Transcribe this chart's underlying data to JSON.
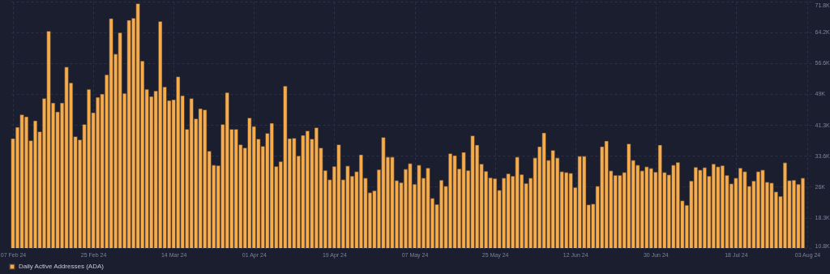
{
  "chart_data": {
    "type": "bar",
    "x": [
      "2024-02-07",
      "2024-02-08",
      "2024-02-09",
      "2024-02-10",
      "2024-02-11",
      "2024-02-12",
      "2024-02-13",
      "2024-02-14",
      "2024-02-15",
      "2024-02-16",
      "2024-02-17",
      "2024-02-18",
      "2024-02-19",
      "2024-02-20",
      "2024-02-21",
      "2024-02-22",
      "2024-02-23",
      "2024-02-24",
      "2024-02-25",
      "2024-02-26",
      "2024-02-27",
      "2024-02-28",
      "2024-02-29",
      "2024-03-01",
      "2024-03-02",
      "2024-03-03",
      "2024-03-04",
      "2024-03-05",
      "2024-03-06",
      "2024-03-07",
      "2024-03-08",
      "2024-03-09",
      "2024-03-10",
      "2024-03-11",
      "2024-03-12",
      "2024-03-13",
      "2024-03-14",
      "2024-03-15",
      "2024-03-16",
      "2024-03-17",
      "2024-03-18",
      "2024-03-19",
      "2024-03-20",
      "2024-03-21",
      "2024-03-22",
      "2024-03-23",
      "2024-03-24",
      "2024-03-25",
      "2024-03-26",
      "2024-03-27",
      "2024-03-28",
      "2024-03-29",
      "2024-03-30",
      "2024-03-31",
      "2024-04-01",
      "2024-04-02",
      "2024-04-03",
      "2024-04-04",
      "2024-04-05",
      "2024-04-06",
      "2024-04-07",
      "2024-04-08",
      "2024-04-09",
      "2024-04-10",
      "2024-04-11",
      "2024-04-12",
      "2024-04-13",
      "2024-04-14",
      "2024-04-15",
      "2024-04-16",
      "2024-04-17",
      "2024-04-18",
      "2024-04-19",
      "2024-04-20",
      "2024-04-21",
      "2024-04-22",
      "2024-04-23",
      "2024-04-24",
      "2024-04-25",
      "2024-04-26",
      "2024-04-27",
      "2024-04-28",
      "2024-04-29",
      "2024-04-30",
      "2024-05-01",
      "2024-05-02",
      "2024-05-03",
      "2024-05-04",
      "2024-05-05",
      "2024-05-06",
      "2024-05-07",
      "2024-05-08",
      "2024-05-09",
      "2024-05-10",
      "2024-05-11",
      "2024-05-12",
      "2024-05-13",
      "2024-05-14",
      "2024-05-15",
      "2024-05-16",
      "2024-05-17",
      "2024-05-18",
      "2024-05-19",
      "2024-05-20",
      "2024-05-21",
      "2024-05-22",
      "2024-05-23",
      "2024-05-24",
      "2024-05-25",
      "2024-05-26",
      "2024-05-27",
      "2024-05-28",
      "2024-05-29",
      "2024-05-30",
      "2024-05-31",
      "2024-06-01",
      "2024-06-02",
      "2024-06-03",
      "2024-06-04",
      "2024-06-05",
      "2024-06-06",
      "2024-06-07",
      "2024-06-08",
      "2024-06-09",
      "2024-06-10",
      "2024-06-11",
      "2024-06-12",
      "2024-06-13",
      "2024-06-14",
      "2024-06-15",
      "2024-06-16",
      "2024-06-17",
      "2024-06-18",
      "2024-06-19",
      "2024-06-20",
      "2024-06-21",
      "2024-06-22",
      "2024-06-23",
      "2024-06-24",
      "2024-06-25",
      "2024-06-26",
      "2024-06-27",
      "2024-06-28",
      "2024-06-29",
      "2024-06-30",
      "2024-07-01",
      "2024-07-02",
      "2024-07-03",
      "2024-07-04",
      "2024-07-05",
      "2024-07-06",
      "2024-07-07",
      "2024-07-08",
      "2024-07-09",
      "2024-07-10",
      "2024-07-11",
      "2024-07-12",
      "2024-07-13",
      "2024-07-14",
      "2024-07-15",
      "2024-07-16",
      "2024-07-17",
      "2024-07-18",
      "2024-07-19",
      "2024-07-20",
      "2024-07-21",
      "2024-07-22",
      "2024-07-23",
      "2024-07-24",
      "2024-07-25",
      "2024-07-26",
      "2024-07-27",
      "2024-07-28",
      "2024-07-29",
      "2024-07-30",
      "2024-07-31",
      "2024-08-01",
      "2024-08-02"
    ],
    "series": [
      {
        "name": "Daily Active Addresses (ADA)",
        "color": "#f7ac4b",
        "values": [
          37.9,
          40.7,
          43.8,
          43.3,
          37.4,
          42.3,
          39.6,
          47.8,
          64.5,
          46.7,
          44.5,
          46.7,
          55.6,
          51.7,
          38.4,
          37.6,
          41.4,
          50.1,
          44.3,
          48.1,
          48.9,
          53.7,
          67.6,
          58.8,
          64.1,
          49.1,
          67.2,
          67.7,
          71.3,
          57.1,
          50.1,
          48.3,
          49.7,
          66.9,
          50.7,
          47.3,
          47.5,
          53.2,
          48.5,
          40.2,
          47.8,
          42.8,
          45.3,
          45.0,
          34.8,
          31.3,
          31.2,
          41.4,
          49.3,
          40.2,
          40.2,
          36.4,
          35.6,
          43.0,
          40.9,
          37.8,
          36.0,
          39.2,
          41.7,
          31.0,
          32.2,
          50.9,
          37.9,
          38.0,
          33.6,
          38.7,
          39.8,
          37.8,
          40.6,
          35.6,
          30.0,
          27.7,
          31.0,
          36.4,
          27.7,
          31.1,
          28.6,
          29.7,
          33.9,
          28.1,
          24.5,
          25.0,
          30.2,
          38.2,
          33.3,
          33.3,
          27.5,
          27.0,
          30.3,
          31.7,
          26.6,
          31.3,
          28.1,
          30.6,
          23.1,
          21.6,
          27.6,
          26.1,
          34.2,
          33.7,
          30.4,
          34.5,
          30.0,
          38.6,
          36.3,
          31.6,
          29.8,
          28.2,
          28.0,
          25.1,
          28.1,
          29.2,
          28.6,
          33.3,
          29.0,
          26.8,
          28.1,
          33.1,
          35.9,
          39.3,
          32.5,
          35.0,
          33.1,
          29.7,
          29.5,
          29.3,
          25.8,
          33.5,
          33.5,
          21.5,
          21.7,
          26.1,
          35.9,
          37.3,
          29.9,
          28.8,
          28.8,
          29.5,
          36.6,
          32.5,
          31.3,
          29.9,
          30.9,
          30.5,
          29.6,
          36.3,
          29.5,
          28.9,
          31.3,
          32.0,
          22.5,
          21.4,
          27.4,
          30.8,
          30.1,
          30.7,
          28.6,
          31.6,
          30.9,
          31.2,
          28.8,
          26.7,
          28.1,
          30.6,
          29.7,
          26.1,
          27.4,
          29.7,
          30.1,
          27.1,
          26.9,
          24.7,
          23.6,
          31.9,
          27.5,
          27.6,
          26.6,
          28.1
        ]
      }
    ],
    "xlim": [
      "2024-02-07",
      "2024-08-03"
    ],
    "xticks": [
      {
        "value": "2024-02-07",
        "label": "07 Feb 24"
      },
      {
        "value": "2024-02-25",
        "label": "25 Feb 24"
      },
      {
        "value": "2024-03-14",
        "label": "14 Mar 24"
      },
      {
        "value": "2024-04-01",
        "label": "01 Apr 24"
      },
      {
        "value": "2024-04-19",
        "label": "19 Apr 24"
      },
      {
        "value": "2024-05-07",
        "label": "07 May 24"
      },
      {
        "value": "2024-05-25",
        "label": "25 May 24"
      },
      {
        "value": "2024-06-12",
        "label": "12 Jun 24"
      },
      {
        "value": "2024-06-30",
        "label": "30 Jun 24"
      },
      {
        "value": "2024-07-18",
        "label": "18 Jul 24"
      },
      {
        "value": "2024-08-03",
        "label": "03 Aug 24"
      }
    ],
    "ylim": [
      10.8,
      71.8
    ],
    "yticks": [
      {
        "value": 10.8,
        "label": "10.8K"
      },
      {
        "value": 18.3,
        "label": "18.3K"
      },
      {
        "value": 26,
        "label": "26K"
      },
      {
        "value": 33.6,
        "label": "33.6K"
      },
      {
        "value": 41.3,
        "label": "41.3K"
      },
      {
        "value": 49,
        "label": "49K"
      },
      {
        "value": 56.6,
        "label": "56.6K"
      },
      {
        "value": 64.2,
        "label": "64.2K"
      },
      {
        "value": 71.8,
        "label": "71.8K"
      }
    ],
    "grid": true,
    "legend": "bottom"
  }
}
